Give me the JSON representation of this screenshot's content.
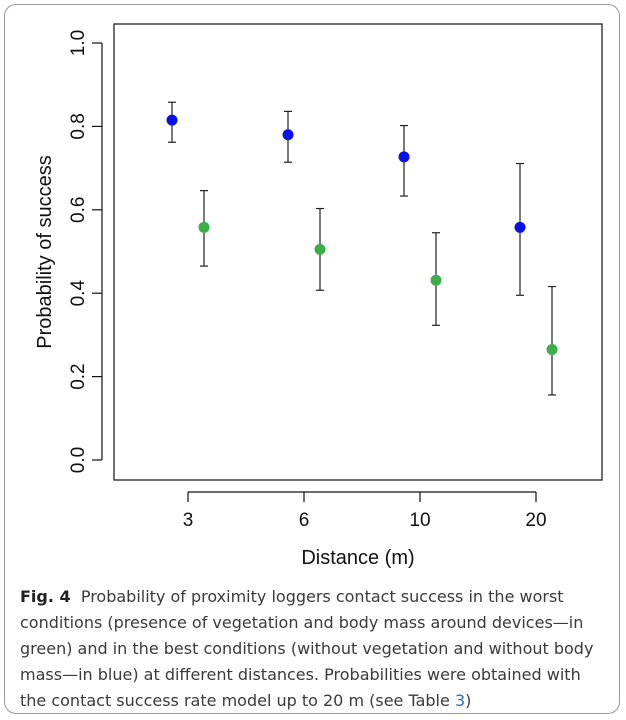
{
  "figure": {
    "label": "Fig. 4",
    "caption_before_ref": "Probability of proximity loggers contact success in the worst conditions (presence of vegetation and body mass around devices—in green) and in the best conditions (without vegetation and without body mass—in blue) at different distances. Probabilities were obtained with the contact success rate model up to 20 m (see Table ",
    "caption_ref": "3",
    "caption_after_ref": ")"
  },
  "colors": {
    "blue": "#0a10e8",
    "green": "#3cae48",
    "axis": "#111111"
  },
  "chart_data": {
    "type": "scatter",
    "title": "",
    "xlabel": "Distance (m)",
    "ylabel": "Probability of success",
    "categories": [
      "3",
      "6",
      "10",
      "20"
    ],
    "ylim": [
      0.0,
      1.0
    ],
    "yticks": [
      "0.0",
      "0.2",
      "0.4",
      "0.6",
      "0.8",
      "1.0"
    ],
    "grid": false,
    "legend": "none",
    "series": [
      {
        "color": "blue",
        "values": [
          0.815,
          0.78,
          0.727,
          0.558
        ],
        "lower": [
          0.762,
          0.714,
          0.633,
          0.395
        ],
        "upper": [
          0.858,
          0.836,
          0.802,
          0.711
        ]
      },
      {
        "color": "green",
        "values": [
          0.558,
          0.505,
          0.431,
          0.265
        ],
        "lower": [
          0.465,
          0.407,
          0.323,
          0.156
        ],
        "upper": [
          0.646,
          0.603,
          0.545,
          0.416
        ]
      }
    ]
  }
}
